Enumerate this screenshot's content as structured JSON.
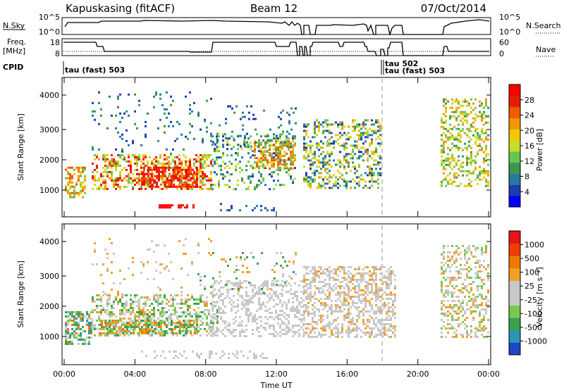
{
  "header": {
    "station": "Kapuskasing (fitACF)",
    "beam": "Beam 12",
    "date": "07/Oct/2014"
  },
  "top_strip": {
    "nsky_label": "N.Sky",
    "nsky_ticks": [
      "10^5",
      "10^0"
    ],
    "nsearch_label": "N.Search",
    "nsearch_ticks": [
      "10^5",
      "10^0"
    ],
    "freq_label_1": "Freq.",
    "freq_label_2": "[MHz]",
    "freq_ticks": [
      "18",
      "8"
    ],
    "nave_label": "Nave",
    "nave_ticks": [
      "60",
      "0"
    ],
    "cpid_label": "CPID",
    "cpid_entries": [
      "tau (fast) 503",
      "tau 502",
      "tau (fast) 503"
    ]
  },
  "chart_data": [
    {
      "type": "heatmap",
      "name": "power",
      "ylabel": "Slant Range [km]",
      "xlabel": "",
      "yticks": [
        "1000",
        "2000",
        "3000",
        "4000"
      ],
      "colorbar_label": "Power [dB]",
      "colorbar_ticks": [
        "28",
        "24",
        "20",
        "16",
        "12",
        "8",
        "4"
      ],
      "colors": [
        "#0000ff",
        "#1a3cb4",
        "#2878a0",
        "#3c9650",
        "#64c850",
        "#c8dc28",
        "#f0c800",
        "#f09600",
        "#f05a00",
        "#e61e00",
        "#ff0000"
      ]
    },
    {
      "type": "heatmap",
      "name": "velocity",
      "ylabel": "Slant Range [km]",
      "xlabel": "Time UT",
      "yticks": [
        "1000",
        "2000",
        "3000",
        "4000"
      ],
      "xticks": [
        "00:00",
        "04:00",
        "08:00",
        "12:00",
        "16:00",
        "20:00",
        "00:00"
      ],
      "colorbar_label": "Velocity [m s⁻¹]",
      "colorbar_ticks": [
        "1000",
        "500",
        "100",
        "25",
        "-25",
        "-100",
        "-500",
        "-1000"
      ],
      "colors": [
        "#1e46c8",
        "#2896b4",
        "#3ca050",
        "#78c850",
        "#c8c8c8",
        "#c8c8c8",
        "#f0a028",
        "#f07800",
        "#f03c00",
        "#e61414"
      ]
    }
  ]
}
